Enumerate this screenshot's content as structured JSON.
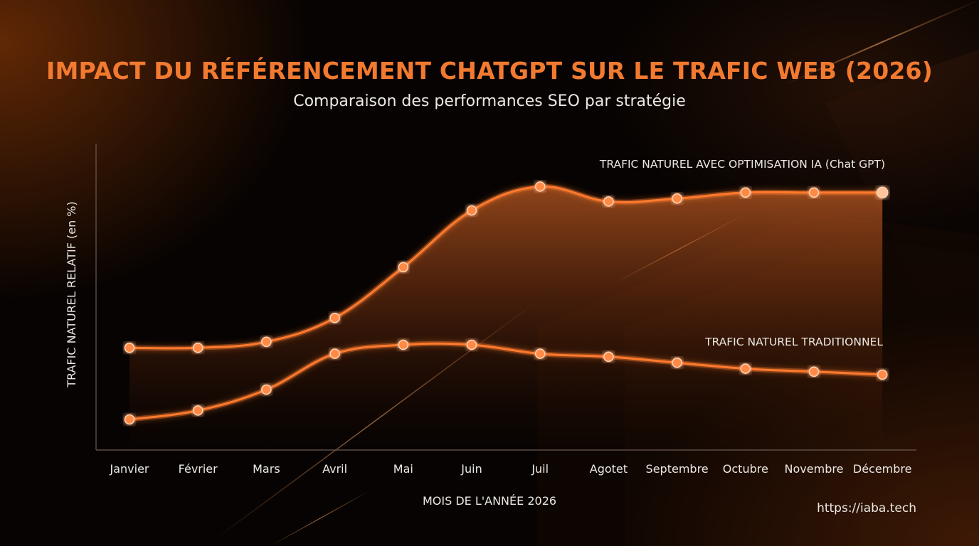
{
  "colors": {
    "accent": "#f27a30",
    "line": "#ff7a2e",
    "point_fill": "#ff8a45",
    "point_stroke": "#ffd2b0",
    "axis": "#6b5a50",
    "text": "#ece8e2",
    "background": "#070302"
  },
  "header": {
    "title": "IMPACT DU RÉFÉRENCEMENT CHATGPT SUR LE TRAFIC WEB (2026)",
    "subtitle": "Comparaison des performances SEO par stratégie"
  },
  "footer": {
    "url": "https://iaba.tech"
  },
  "chart_data": {
    "type": "line",
    "title": "IMPACT DU RÉFÉRENCEMENT CHATGPT SUR LE TRAFIC WEB (2026)",
    "subtitle": "Comparaison des performances SEO par stratégie",
    "xlabel": "MOIS DE L'ANNÉE 2026",
    "ylabel": "TRAFIC NATUREL RELATIF (en %)",
    "categories": [
      "Janvier",
      "Février",
      "Mars",
      "Avril",
      "Mai",
      "Juin",
      "Juil",
      "Agotet",
      "Septembre",
      "Octubre",
      "Novembre",
      "Décembre"
    ],
    "y_ticks_shown": false,
    "ylim": [
      0,
      100
    ],
    "grid": false,
    "legend": "inline labels above each line",
    "series": [
      {
        "name": "TRAFIC NATUREL AVEC OPTIMISATION IA (Chat GPT)",
        "values": [
          34,
          34,
          36,
          44,
          61,
          80,
          88,
          83,
          84,
          86,
          86,
          86
        ],
        "area_fill": true
      },
      {
        "name": "TRAFIC NATUREL TRADITIONNEL",
        "values": [
          10,
          13,
          20,
          32,
          35,
          35,
          32,
          31,
          29,
          27,
          26,
          25
        ],
        "area_fill": false
      }
    ]
  }
}
